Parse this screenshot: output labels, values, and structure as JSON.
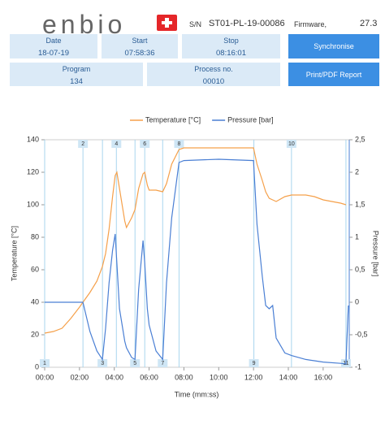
{
  "header": {
    "logo": "enbio",
    "sn_label": "S/N",
    "serial": "ST01-PL-19-00086",
    "firmware_label": "Firmware,",
    "firmware": "27.3"
  },
  "info": {
    "date_label": "Date",
    "date": "18-07-19",
    "start_label": "Start",
    "start": "07:58:36",
    "stop_label": "Stop",
    "stop": "08:16:01",
    "program_label": "Program",
    "program": "134",
    "process_label": "Process no.",
    "process": "00010"
  },
  "buttons": {
    "synchronise": "Synchronise",
    "report": "Print/PDF Report"
  },
  "chart_data": {
    "type": "line",
    "y_label": "Temperature [°C]",
    "y2_label": "Pressure [bar]",
    "x_label": "Time (mm:ss)",
    "x": [
      0,
      0.5,
      1,
      1.5,
      2,
      2.2,
      2.6,
      3,
      3.32,
      3.5,
      3.7,
      3.9,
      4.05,
      4.15,
      4.3,
      4.6,
      4.7,
      5,
      5.19,
      5.4,
      5.65,
      5.75,
      5.9,
      6,
      6.4,
      6.78,
      7,
      7.3,
      7.72,
      8,
      10,
      12,
      12.2,
      12.5,
      12.7,
      12.9,
      13.1,
      13.3,
      13.8,
      14.18,
      15,
      15.5,
      16,
      17,
      17.31,
      17.45
    ],
    "series": [
      {
        "name": "Temperature [°C]",
        "color": "#f5a04a",
        "values": [
          21,
          22,
          24,
          30,
          37,
          40,
          46,
          53,
          62,
          70,
          85,
          105,
          118,
          120,
          110,
          90,
          86,
          92,
          97,
          110,
          119,
          120,
          112,
          109,
          109,
          108,
          113,
          125,
          134,
          135,
          135,
          135,
          125,
          115,
          108,
          104,
          103,
          102,
          105,
          106,
          106,
          105,
          103,
          101,
          100,
          null
        ]
      },
      {
        "name": "Pressure [bar]",
        "color": "#4a7fd4",
        "axis": "y2",
        "values": [
          0,
          0,
          0,
          0,
          0,
          0,
          -0.45,
          -0.75,
          -0.88,
          -0.4,
          0.3,
          0.8,
          1.05,
          0.6,
          -0.1,
          -0.6,
          -0.7,
          -0.85,
          -0.88,
          0.2,
          0.95,
          0.6,
          -0.1,
          -0.35,
          -0.75,
          -0.88,
          0.3,
          1.3,
          2.15,
          2.18,
          2.2,
          2.18,
          1.2,
          0.4,
          -0.05,
          -0.1,
          -0.05,
          -0.55,
          -0.78,
          -0.82,
          -0.88,
          -0.9,
          -0.92,
          -0.94,
          -0.95,
          -0.05
        ]
      }
    ],
    "xlim": [
      0,
      17.5
    ],
    "xticks": [
      {
        "value": 0,
        "label": "00:00"
      },
      {
        "value": 2,
        "label": "02:00"
      },
      {
        "value": 4,
        "label": "04:00"
      },
      {
        "value": 6,
        "label": "06:00"
      },
      {
        "value": 8,
        "label": "08:00"
      },
      {
        "value": 10,
        "label": "10:00"
      },
      {
        "value": 12,
        "label": "12:00"
      },
      {
        "value": 14,
        "label": "14:00"
      },
      {
        "value": 16,
        "label": "16:00"
      }
    ],
    "ylim": [
      0,
      140
    ],
    "yticks": [
      0,
      20,
      40,
      60,
      80,
      100,
      120,
      140
    ],
    "y2lim": [
      -1,
      2.5
    ],
    "y2ticks": [
      -1,
      {
        "value": -0.5,
        "label": "-0,5"
      },
      0,
      {
        "value": 0.5,
        "label": "0,5"
      },
      1,
      {
        "value": 1.5,
        "label": "1,5"
      },
      2,
      {
        "value": 2.5,
        "label": "2,5"
      }
    ],
    "events": [
      {
        "label": "1",
        "x": 0
      },
      {
        "label": "2",
        "x": 2.2
      },
      {
        "label": "3",
        "x": 3.32
      },
      {
        "label": "4",
        "x": 4.12
      },
      {
        "label": "5",
        "x": 5.19
      },
      {
        "label": "6",
        "x": 5.75
      },
      {
        "label": "7",
        "x": 6.78
      },
      {
        "label": "8",
        "x": 7.72
      },
      {
        "label": "9",
        "x": 12.02
      },
      {
        "label": "10",
        "x": 14.18
      },
      {
        "label": "11",
        "x": 17.31
      }
    ],
    "legend": "top"
  }
}
